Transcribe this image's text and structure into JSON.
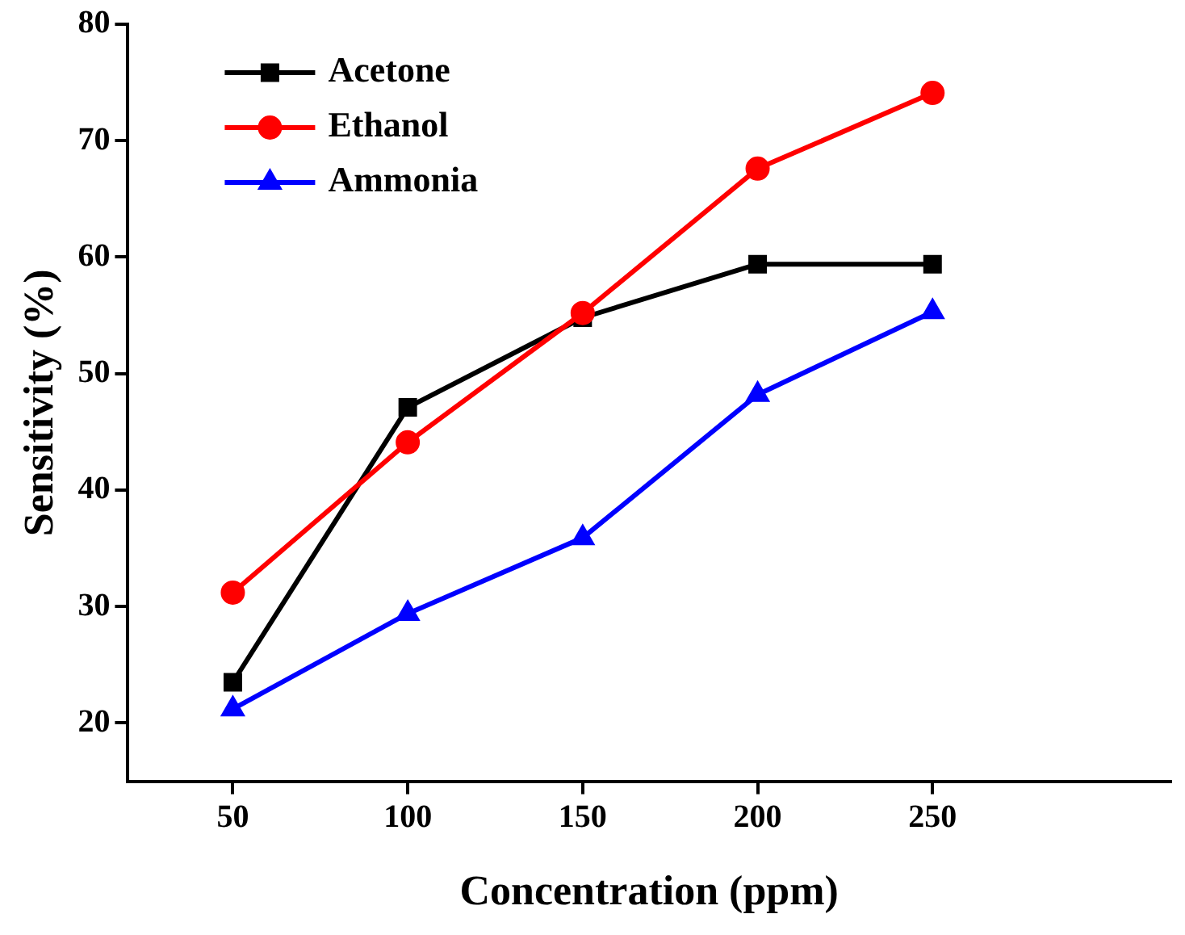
{
  "chart_data": {
    "type": "line",
    "xlabel": "Concentration (ppm)",
    "ylabel": "Sensitivity (%)",
    "x": [
      50,
      100,
      150,
      200,
      250
    ],
    "series": [
      {
        "name": "Acetone",
        "color": "#000000",
        "marker": "square",
        "values": [
          23.5,
          47.1,
          54.8,
          59.4,
          59.4
        ]
      },
      {
        "name": "Ethanol",
        "color": "#ff0000",
        "marker": "circle",
        "values": [
          31.2,
          44.1,
          55.2,
          67.6,
          74.1
        ]
      },
      {
        "name": "Ammonia",
        "color": "#0000ff",
        "marker": "triangle",
        "values": [
          21.2,
          29.4,
          35.9,
          48.2,
          55.3
        ]
      }
    ],
    "xlim": [
      20,
      318
    ],
    "xticks": [
      50,
      100,
      150,
      200,
      250
    ],
    "ylim": [
      15,
      80
    ],
    "yticks": [
      20,
      30,
      40,
      50,
      60,
      70,
      80
    ],
    "grid": false,
    "legend": "top left",
    "line_style": "solid"
  }
}
